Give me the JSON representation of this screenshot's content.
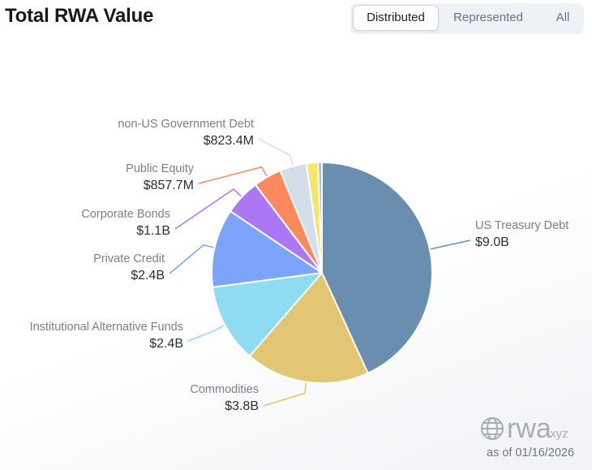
{
  "header": {
    "title": "Total RWA Value"
  },
  "toggle": {
    "options": [
      "Distributed",
      "Represented",
      "All"
    ],
    "selected": "Distributed"
  },
  "chart_data": {
    "type": "pie",
    "title": "Total RWA Value",
    "unit": "USD",
    "slices": [
      {
        "name": "US Treasury Debt",
        "value_label": "$9.0B",
        "value": 9.0,
        "color": "#6a8eb0"
      },
      {
        "name": "Commodities",
        "value_label": "$3.8B",
        "value": 3.8,
        "color": "#e2c673"
      },
      {
        "name": "Institutional Alternative Funds",
        "value_label": "$2.4B",
        "value": 2.4,
        "color": "#8fdbf2"
      },
      {
        "name": "Private Credit",
        "value_label": "$2.4B",
        "value": 2.4,
        "color": "#7ca4fb"
      },
      {
        "name": "Corporate Bonds",
        "value_label": "$1.1B",
        "value": 1.1,
        "color": "#ac77f4"
      },
      {
        "name": "Public Equity",
        "value_label": "$857.7M",
        "value": 0.8577,
        "color": "#fa8a5d"
      },
      {
        "name": "non-US Government Debt",
        "value_label": "$823.4M",
        "value": 0.8234,
        "color": "#d3deea"
      },
      {
        "name": "",
        "value_label": "",
        "value": 0.35,
        "color": "#f6e56a"
      },
      {
        "name": "",
        "value_label": "",
        "value": 0.12,
        "color": "#a9bdd1"
      }
    ]
  },
  "brand": {
    "name": "rwa",
    "suffix": ".xyz",
    "icon": "globe-icon"
  },
  "footer": {
    "as_of": "as of 01/16/2026"
  }
}
